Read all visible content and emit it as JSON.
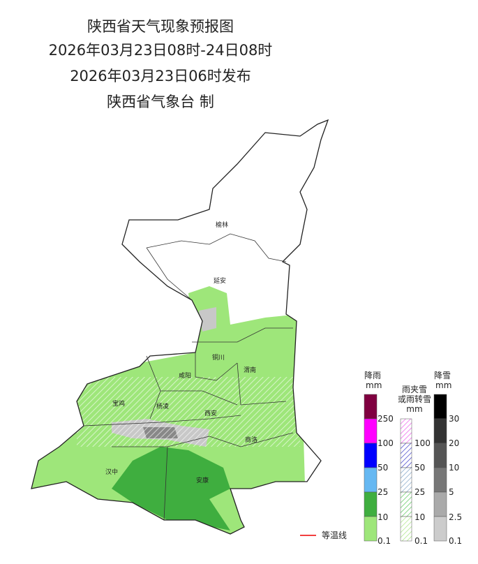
{
  "header": {
    "title": "陕西省天气现象预报图",
    "period": "2026年03月23日08时-24日08时",
    "issued": "2026年03月23日06时发布",
    "issuer": "陕西省气象台 制"
  },
  "cities": [
    "榆林",
    "延安",
    "铜川",
    "咸阳",
    "渭南",
    "宝鸡",
    "杨凌",
    "西安",
    "商洛",
    "汉中",
    "安康"
  ],
  "legend": {
    "rain": {
      "title": "降雨",
      "unit": "mm",
      "levels": [
        250,
        100,
        50,
        25,
        10,
        0.1
      ]
    },
    "mixed": {
      "title": [
        "雨夹雪",
        "或雨转雪",
        "mm"
      ],
      "levels": [
        100,
        50,
        25,
        10,
        0.1
      ]
    },
    "snow": {
      "title": "降雪",
      "unit": "mm",
      "levels": [
        30,
        20,
        10,
        5,
        2.5,
        0.1
      ]
    },
    "isotherm": "等温线"
  }
}
